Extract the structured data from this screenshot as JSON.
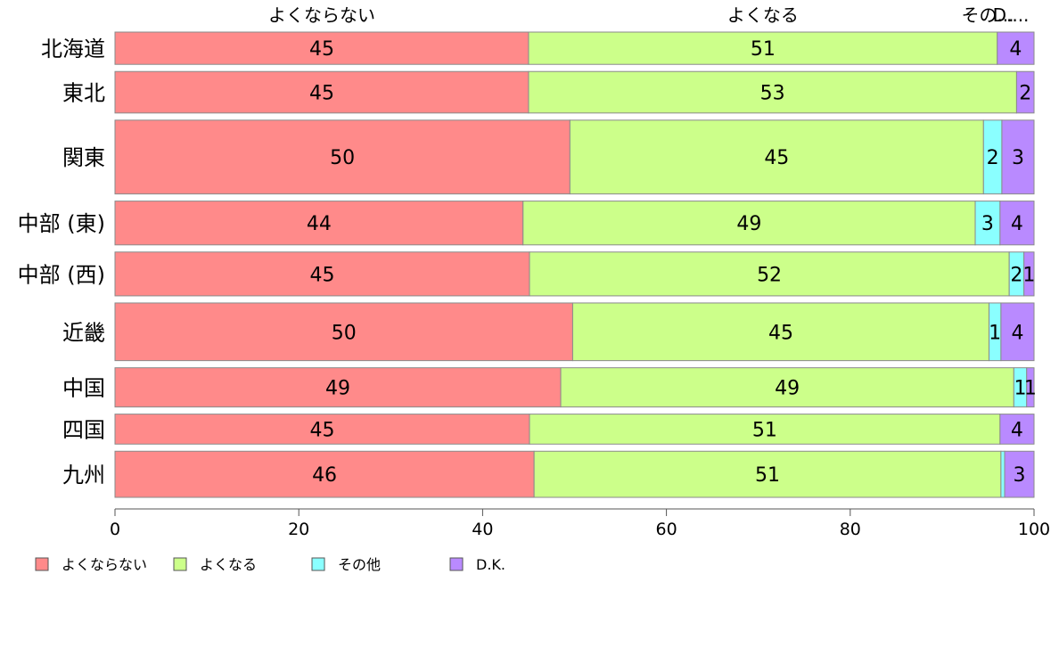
{
  "chart_data": {
    "type": "bar",
    "orientation": "horizontal",
    "stacked": true,
    "categories": [
      "北海道",
      "東北",
      "関東",
      "中部 (東)",
      "中部 (西)",
      "近畿",
      "中国",
      "四国",
      "九州"
    ],
    "category_weights": [
      0.7,
      0.9,
      1.6,
      0.95,
      0.95,
      1.25,
      0.85,
      0.65,
      1.0
    ],
    "series": [
      {
        "name": "よくならない",
        "color": "#ff8a8a",
        "values": [
          45,
          45,
          49.5,
          44.4,
          45.1,
          49.8,
          48.5,
          45.1,
          45.6
        ],
        "labels": [
          "45",
          "45",
          "50",
          "44",
          "45",
          "50",
          "49",
          "45",
          "46"
        ]
      },
      {
        "name": "よくなる",
        "color": "#ccff8a",
        "values": [
          51,
          53.1,
          45,
          49.2,
          52.2,
          45.3,
          49.3,
          51.2,
          50.8
        ],
        "labels": [
          "51",
          "53",
          "45",
          "49",
          "52",
          "45",
          "49",
          "51",
          "51"
        ]
      },
      {
        "name": "その他",
        "color": "#8affff",
        "values": [
          0,
          0,
          2,
          2.7,
          1.6,
          1.3,
          1.4,
          0,
          0.4
        ],
        "labels": [
          "",
          "",
          "2",
          "3",
          "2",
          "1",
          "1",
          "",
          ""
        ]
      },
      {
        "name": "D.K.",
        "color": "#b98aff",
        "values": [
          4,
          1.9,
          3.5,
          3.7,
          1.1,
          3.6,
          0.8,
          3.7,
          3.2
        ],
        "labels": [
          "4",
          "2",
          "3",
          "4",
          "1",
          "4",
          "1",
          "4",
          "3"
        ]
      }
    ],
    "top_labels": [
      "よくならない",
      "よくなる",
      "その...",
      "D...."
    ],
    "xlim": [
      0,
      100
    ],
    "xticks": [
      0,
      20,
      40,
      60,
      80,
      100
    ],
    "legend_position": "bottom-left",
    "grid": false
  }
}
